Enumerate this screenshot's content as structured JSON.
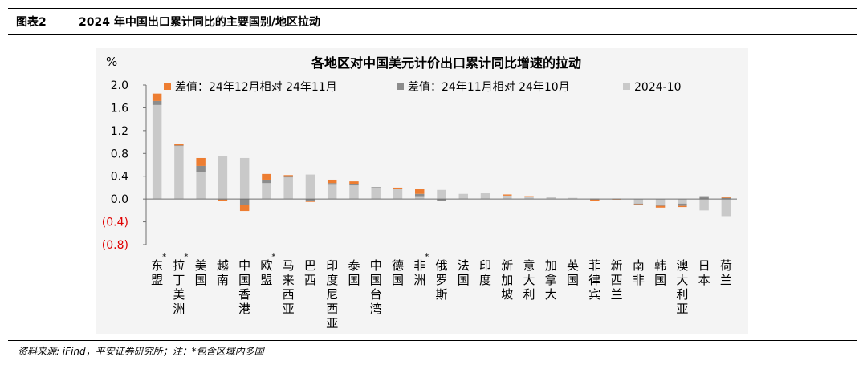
{
  "figure": {
    "number": "图表2",
    "title": "2024 年中国出口累计同比的主要国别/地区拉动",
    "source": "资料来源: iFind，平安证券研究所；注：*包含区域内多国"
  },
  "colors": {
    "dec_vs_nov": "#ed7d31",
    "nov_vs_oct": "#8c8c8c",
    "oct_2024": "#c9c9c9",
    "negative_tick": "#e00000",
    "axis": "#6f6f6f"
  },
  "chart_data": {
    "type": "bar",
    "stacked": true,
    "title": "各地区对中国美元计价出口累计同比增速的拉动",
    "ylabel": "%",
    "ylim": [
      -0.8,
      2.0
    ],
    "yticks": [
      2.0,
      1.6,
      1.2,
      0.8,
      0.4,
      0.0,
      -0.4,
      -0.8
    ],
    "ytick_labels": [
      "2.0",
      "1.6",
      "1.2",
      "0.8",
      "0.4",
      "0.0",
      "(0.4)",
      "(0.8)"
    ],
    "legend_position": "top",
    "categories": [
      "东盟*",
      "拉丁美洲*",
      "美国",
      "越南",
      "中国香港",
      "欧盟*",
      "马来西亚",
      "巴西",
      "印度尼西亚",
      "泰国",
      "中国台湾",
      "德国",
      "非洲*",
      "俄罗斯",
      "法国",
      "印度",
      "新加坡",
      "意大利",
      "加拿大",
      "英国",
      "菲律宾",
      "新西兰",
      "南非",
      "韩国",
      "澳大利亚",
      "日本",
      "荷兰"
    ],
    "series": [
      {
        "name": "2024-10",
        "key": "oct_2024",
        "values": [
          1.65,
          0.93,
          0.48,
          0.75,
          0.72,
          0.28,
          0.38,
          0.43,
          0.25,
          0.24,
          0.2,
          0.17,
          0.05,
          0.16,
          0.09,
          0.1,
          0.06,
          0.04,
          0.04,
          0.02,
          0.01,
          0.01,
          -0.08,
          -0.1,
          -0.08,
          -0.2,
          -0.3
        ]
      },
      {
        "name": "差值：24年11月相对 24年10月",
        "key": "nov_vs_oct",
        "values": [
          0.07,
          0.01,
          0.1,
          -0.01,
          -0.11,
          0.06,
          0.01,
          -0.03,
          0.03,
          0.02,
          0.01,
          0.01,
          0.04,
          -0.03,
          0.0,
          0.0,
          0.0,
          0.0,
          0.0,
          0.0,
          -0.01,
          0.0,
          -0.01,
          -0.02,
          -0.04,
          0.05,
          0.02
        ]
      },
      {
        "name": "差值：24年12月相对 24年11月",
        "key": "dec_vs_nov",
        "values": [
          0.13,
          0.02,
          0.14,
          -0.02,
          -0.1,
          0.1,
          0.03,
          -0.02,
          0.06,
          0.05,
          0.0,
          0.02,
          0.09,
          0.0,
          0.0,
          0.0,
          0.02,
          0.01,
          0.0,
          0.0,
          -0.02,
          -0.01,
          -0.02,
          -0.03,
          -0.02,
          0.0,
          0.02
        ]
      }
    ]
  }
}
